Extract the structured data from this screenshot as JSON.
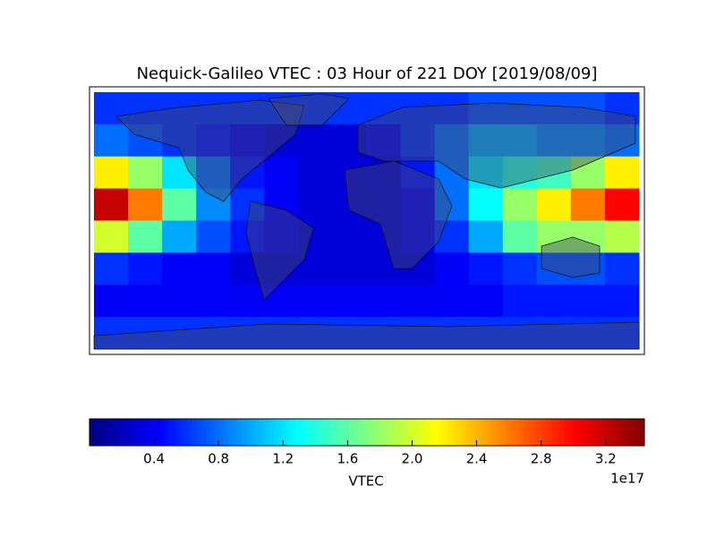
{
  "chart_data": {
    "type": "heatmap",
    "title": "Nequick-Galileo VTEC : 03 Hour of 221 DOY [2019/08/09]",
    "colormap": "jet",
    "values": [
      [
        0.6,
        0.6,
        0.6,
        0.6,
        0.6,
        0.6,
        0.6,
        0.6,
        0.6,
        0.6,
        0.6,
        0.7,
        0.7,
        0.7,
        0.7,
        0.6
      ],
      [
        0.8,
        0.7,
        0.6,
        0.5,
        0.4,
        0.3,
        0.3,
        0.3,
        0.4,
        0.6,
        0.8,
        1.0,
        1.0,
        0.9,
        0.9,
        0.8
      ],
      [
        2.2,
        1.8,
        1.2,
        0.8,
        0.5,
        0.4,
        0.3,
        0.3,
        0.3,
        0.5,
        0.8,
        1.2,
        1.4,
        1.5,
        1.8,
        2.2
      ],
      [
        3.2,
        2.6,
        1.6,
        0.9,
        0.6,
        0.4,
        0.3,
        0.3,
        0.3,
        0.4,
        0.8,
        1.3,
        1.8,
        2.2,
        2.6,
        3.0
      ],
      [
        2.0,
        1.6,
        1.0,
        0.7,
        0.5,
        0.4,
        0.3,
        0.3,
        0.3,
        0.4,
        0.6,
        1.0,
        1.6,
        1.8,
        1.8,
        1.9
      ],
      [
        0.6,
        0.5,
        0.4,
        0.4,
        0.3,
        0.3,
        0.3,
        0.3,
        0.3,
        0.3,
        0.4,
        0.5,
        0.6,
        0.7,
        0.7,
        0.6
      ],
      [
        0.4,
        0.4,
        0.4,
        0.4,
        0.4,
        0.4,
        0.4,
        0.4,
        0.4,
        0.4,
        0.4,
        0.4,
        0.5,
        0.5,
        0.5,
        0.5
      ],
      [
        0.6,
        0.6,
        0.6,
        0.6,
        0.6,
        0.6,
        0.6,
        0.6,
        0.6,
        0.6,
        0.6,
        0.6,
        0.6,
        0.6,
        0.6,
        0.6
      ]
    ],
    "clim": [
      0,
      3.44
    ],
    "cticks": [
      0.4,
      0.8,
      1.2,
      1.6,
      {
        "value": 2,
        "label": "2.0"
      },
      2.4,
      2.8,
      3.2
    ],
    "clabel": "VTEC",
    "offset_label": "1e17"
  }
}
